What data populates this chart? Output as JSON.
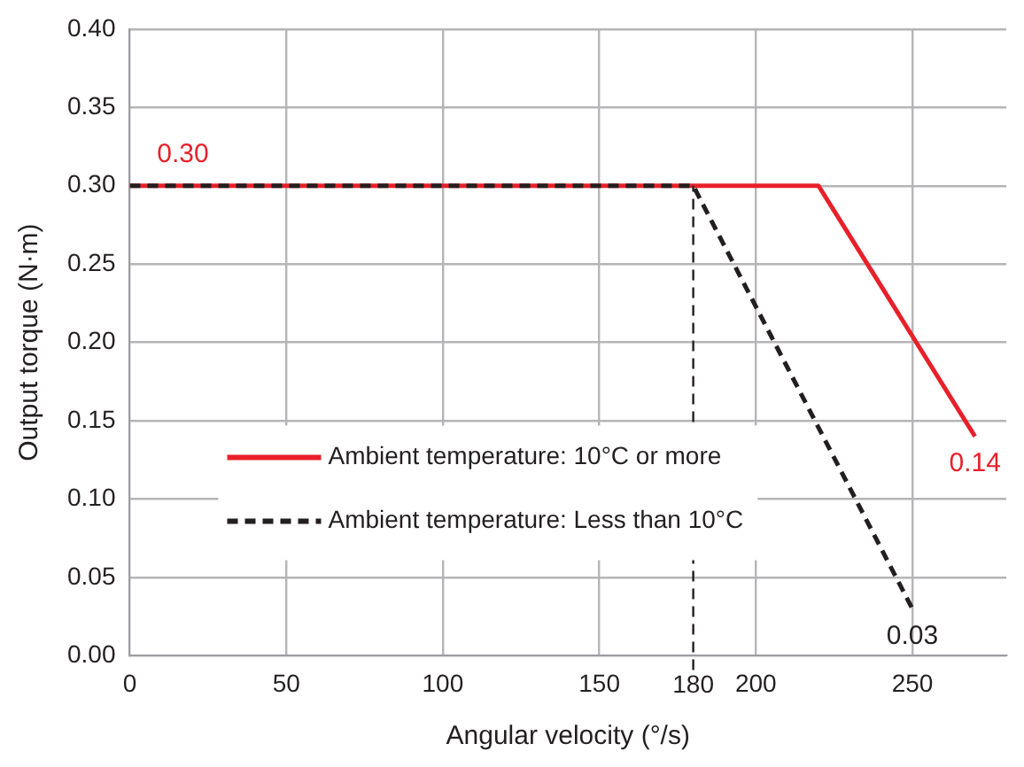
{
  "chart_data": {
    "type": "line",
    "xlabel": "Angular velocity (°/s)",
    "ylabel": "Output torque (N·m)",
    "xlim": [
      0,
      280
    ],
    "xticks": [
      0,
      50,
      100,
      150,
      200,
      250
    ],
    "ylim": [
      0,
      0.4
    ],
    "yticks": [
      {
        "value": 0,
        "label": "0.00"
      },
      {
        "value": 0.05,
        "label": "0.05"
      },
      {
        "value": 0.1,
        "label": "0.10"
      },
      {
        "value": 0.15,
        "label": "0.15"
      },
      {
        "value": 0.2,
        "label": "0.20"
      },
      {
        "value": 0.25,
        "label": "0.25"
      },
      {
        "value": 0.3,
        "label": "0.30"
      },
      {
        "value": 0.35,
        "label": "0.35"
      },
      {
        "value": 0.4,
        "label": "0.40"
      }
    ],
    "grid": true,
    "legend": "left",
    "marker": "none",
    "series": [
      {
        "name": "Ambient temperature: 10°C or more",
        "color": "#e8202a",
        "line_style": "solid",
        "x": [
          0,
          220,
          270
        ],
        "values": [
          0.3,
          0.3,
          0.14
        ]
      },
      {
        "name": "Ambient temperature: Less than 10°C",
        "color": "#231f20",
        "line_style": "dashed",
        "x": [
          0,
          180,
          250
        ],
        "values": [
          0.3,
          0.3,
          0.03
        ]
      }
    ],
    "ref_lines": [
      {
        "axis": "x",
        "value": 180,
        "label": "180",
        "color": "#231f20",
        "line_style": "dashed"
      }
    ],
    "annotations": [
      {
        "text": "0.30",
        "x": 0,
        "y": 0.3
      },
      {
        "text": "0.14",
        "x": 270,
        "y": 0.14
      },
      {
        "text": "0.03",
        "x": 250,
        "y": 0.03
      }
    ]
  }
}
